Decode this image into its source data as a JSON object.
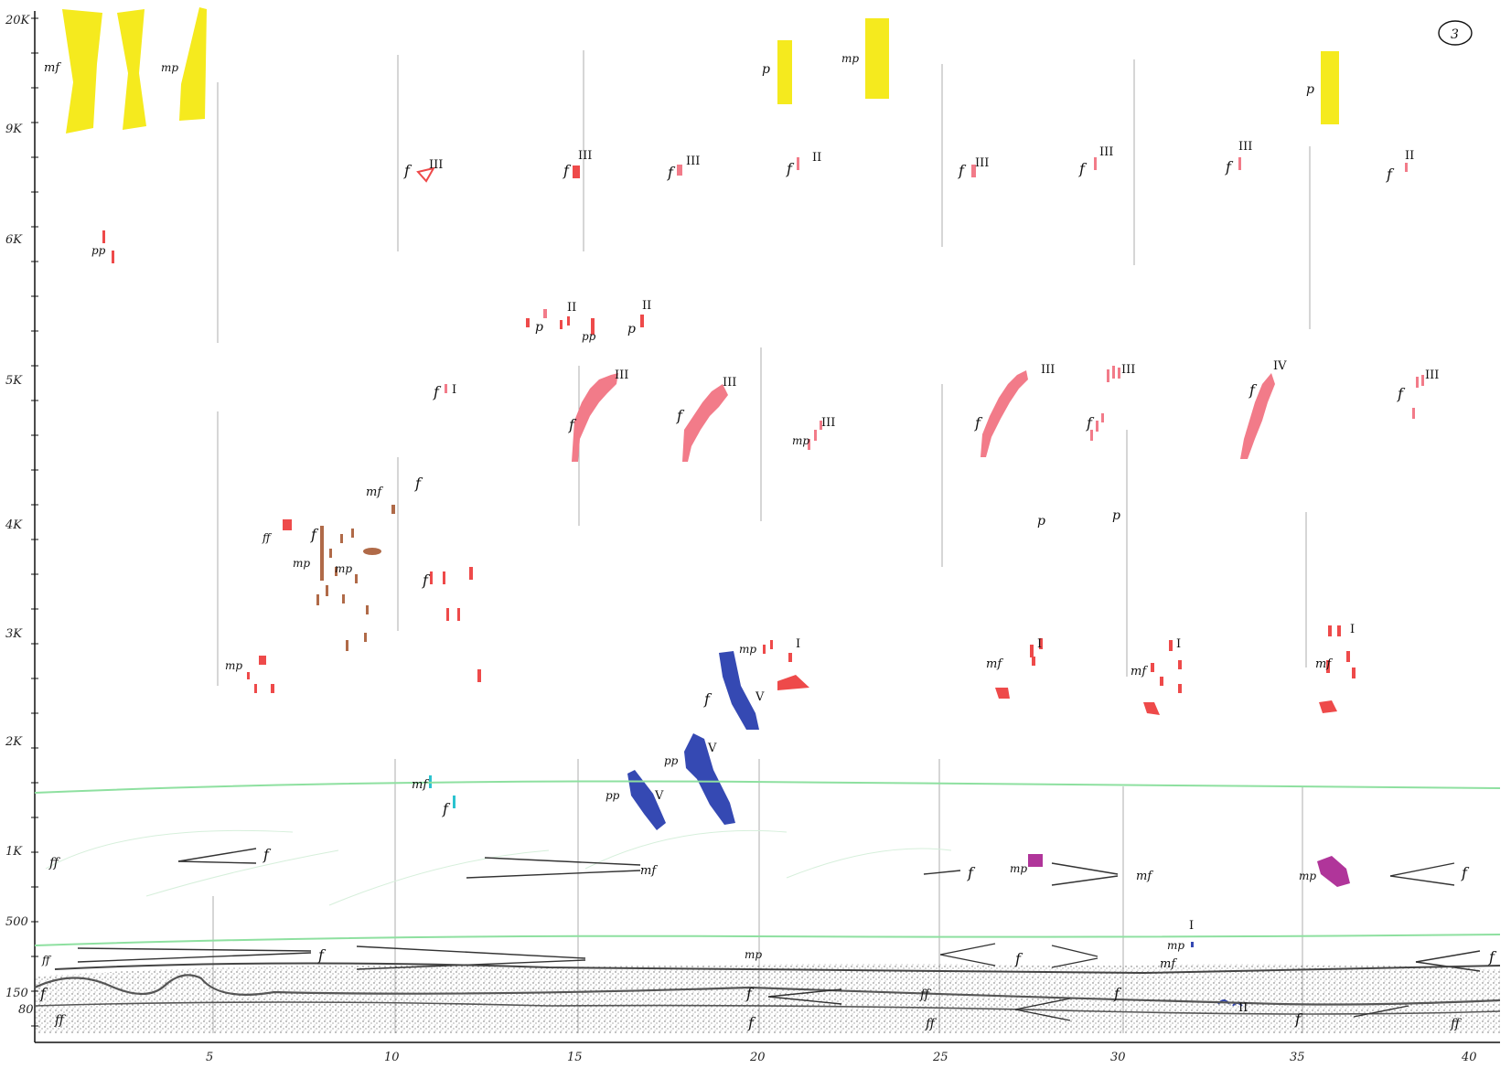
{
  "page": {
    "page_number": "3"
  },
  "y_axis": {
    "labels": [
      "20K",
      "9K",
      "6K",
      "5K",
      "4K",
      "3K",
      "2K",
      "1K",
      "500",
      "150",
      "80"
    ]
  },
  "x_axis": {
    "labels": [
      "5",
      "10",
      "15",
      "20",
      "25",
      "30",
      "35",
      "40"
    ]
  },
  "dynamics": {
    "mf": "mf",
    "mp": "mp",
    "p": "p",
    "pp": "pp",
    "f": "f",
    "ff": "ff"
  },
  "numerals": {
    "I": "I",
    "II": "II",
    "III": "III",
    "IV": "IV",
    "V": "V"
  },
  "colors": {
    "yellow": "#f5ea1e",
    "red": "#ee4a4a",
    "pink": "#f27b89",
    "blue": "#3549b3",
    "cyan": "#2bc3cf",
    "brown": "#b06a48",
    "green": "#8ee0a0",
    "magenta": "#b0359a",
    "ink": "#111111",
    "stipple": "#555555"
  }
}
